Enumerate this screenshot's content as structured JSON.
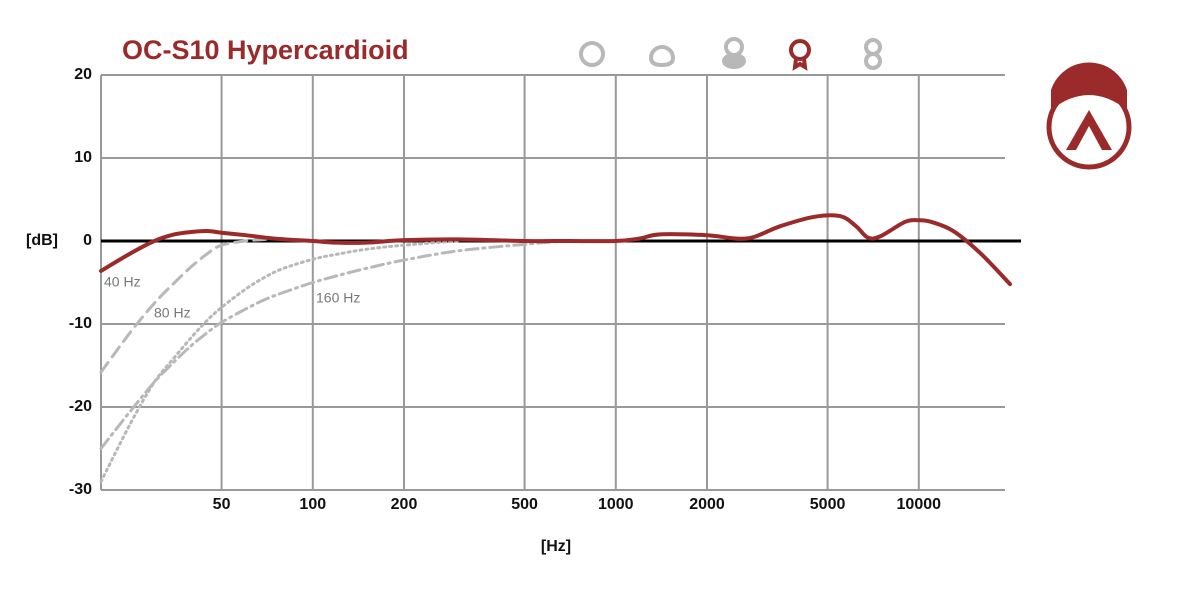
{
  "chart_data": {
    "type": "line",
    "title": "OC-S10 Hypercardioid",
    "title_color": "#9b2a2a",
    "xlabel": "[Hz]",
    "ylabel": "[dB]",
    "xscale": "log",
    "grid": true,
    "zero_line": true,
    "xlim": [
      20,
      20000
    ],
    "ylim": [
      -30,
      20
    ],
    "xticks": [
      50,
      100,
      200,
      500,
      1000,
      2000,
      5000,
      10000
    ],
    "yticks": [
      20,
      10,
      0,
      -10,
      -20,
      -30
    ],
    "x": [
      20,
      25,
      30,
      35,
      40,
      45,
      50,
      60,
      70,
      80,
      100,
      120,
      150,
      200,
      300,
      500,
      700,
      1000,
      1200,
      1400,
      2000,
      2700,
      3500,
      4500,
      5500,
      6200,
      6800,
      7500,
      9000,
      10000,
      11000,
      13000,
      16000,
      20000
    ],
    "series": [
      {
        "name": "40 Hz",
        "color": "#b8b8b8",
        "dash": "dashed",
        "values": [
          -15.8,
          -11,
          -7.5,
          -5,
          -3,
          -1.5,
          -0.5,
          0,
          0.2,
          0.3,
          null,
          null,
          null,
          null,
          null,
          null,
          null,
          null,
          null,
          null,
          null,
          null,
          null,
          null,
          null,
          null,
          null,
          null,
          null,
          null,
          null,
          null,
          null,
          null
        ]
      },
      {
        "name": "80 Hz",
        "color": "#b8b8b8",
        "dash": "dotted",
        "values": [
          -29,
          -22,
          -17,
          -14,
          -11.5,
          -9.5,
          -8,
          -5.8,
          -4.3,
          -3.3,
          -2.2,
          -1.6,
          -1,
          -0.5,
          0,
          null,
          null,
          null,
          null,
          null,
          null,
          null,
          null,
          null,
          null,
          null,
          null,
          null,
          null,
          null,
          null,
          null,
          null,
          null
        ]
      },
      {
        "name": "160 Hz",
        "color": "#b8b8b8",
        "dash": "dashdot",
        "values": [
          -25,
          -20.5,
          -17,
          -14.5,
          -12.5,
          -11,
          -9.8,
          -8.2,
          -7,
          -6.2,
          -5,
          -4.2,
          -3.3,
          -2.3,
          -1.2,
          -0.4,
          0,
          0,
          null,
          null,
          null,
          null,
          null,
          null,
          null,
          null,
          null,
          null,
          null,
          null,
          null,
          null,
          null,
          null
        ]
      },
      {
        "color": "#9b2a2a",
        "dash": "solid",
        "values": [
          -3.6,
          -1.5,
          0,
          0.8,
          1.1,
          1.2,
          1.0,
          0.7,
          0.4,
          0.2,
          0,
          -0.2,
          -0.2,
          0.1,
          0.2,
          0,
          0,
          0,
          0.3,
          0.8,
          0.7,
          0.3,
          1.8,
          2.9,
          3.0,
          1.8,
          0.4,
          0.6,
          2.3,
          2.5,
          2.3,
          1.2,
          -1.5,
          -5.2
        ]
      }
    ]
  }
}
